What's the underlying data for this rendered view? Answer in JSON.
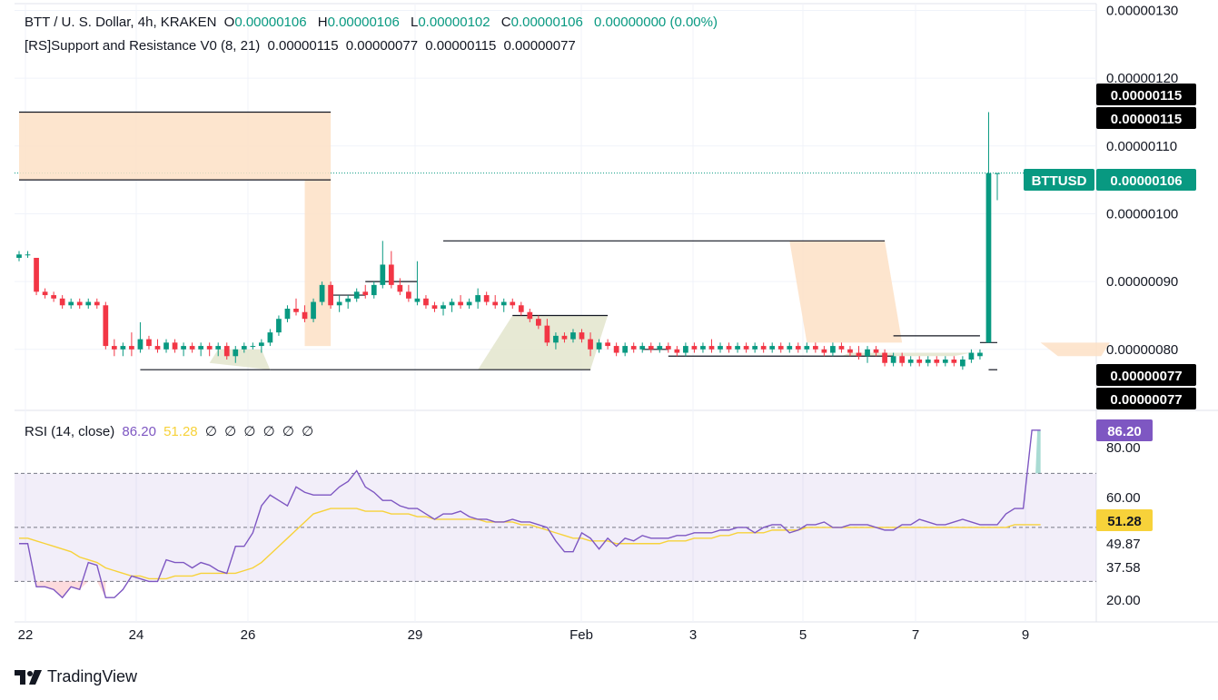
{
  "legend": {
    "symbol": "BTT / U. S. Dollar, 4h, KRAKEN",
    "o_label": "O",
    "o": "0.00000106",
    "h_label": "H",
    "h": "0.00000106",
    "l_label": "L",
    "l": "0.00000102",
    "c_label": "C",
    "c": "0.00000106",
    "change": "0.00000000 (0.00%)",
    "indicator": "[RS]Support and Resistance V0 (8, 21)",
    "ind_values": [
      "0.00000115",
      "0.00000077",
      "0.00000115",
      "0.00000077"
    ]
  },
  "rsi_legend": {
    "title": "RSI (14, close)",
    "rsi": "86.20",
    "ma": "51.28",
    "empty": [
      "∅",
      "∅",
      "∅",
      "∅",
      "∅",
      "∅"
    ]
  },
  "brand": {
    "name": "TradingView"
  },
  "colors": {
    "up": "#089981",
    "down": "#f23645",
    "rsi": "#7e57c2",
    "rsi_ma": "#f7d23a",
    "zone": "#fde0c5",
    "zone_sup": "#e3e5cc"
  },
  "chart_data": {
    "type": "candlestick",
    "symbol": "BTTUSD",
    "x_ticks": [
      "22",
      "24",
      "26",
      "29",
      "Feb",
      "3",
      "5",
      "7",
      "9"
    ],
    "price_axis": {
      "ticks": [
        "0.00000130",
        "0.00000120",
        "0.00000110",
        "0.00000100",
        "0.00000090",
        "0.00000080"
      ],
      "range": [
        7.1e-07,
        1.31e-06
      ]
    },
    "price_labels": [
      {
        "text": "0.00000115",
        "value": 1.15e-06,
        "kind": "resistance"
      },
      {
        "text": "0.00000115",
        "value": 1.15e-06,
        "kind": "resistance"
      },
      {
        "text": "BTTUSD",
        "value": 1.06e-06,
        "kind": "symbol"
      },
      {
        "text": "0.00000106",
        "value": 1.06e-06,
        "kind": "last"
      },
      {
        "text": "0.00000077",
        "value": 7.7e-07,
        "kind": "support"
      },
      {
        "text": "0.00000077",
        "value": 7.7e-07,
        "kind": "support"
      }
    ],
    "last_price": 1.06e-06,
    "candles": [
      [
        9.35e-07,
        9.45e-07,
        9.3e-07,
        9.4e-07
      ],
      [
        9.4e-07,
        9.45e-07,
        9.35e-07,
        9.4e-07
      ],
      [
        9.35e-07,
        9.35e-07,
        8.8e-07,
        8.85e-07
      ],
      [
        8.85e-07,
        8.9e-07,
        8.75e-07,
        8.8e-07
      ],
      [
        8.8e-07,
        8.85e-07,
        8.7e-07,
        8.75e-07
      ],
      [
        8.75e-07,
        8.8e-07,
        8.6e-07,
        8.65e-07
      ],
      [
        8.65e-07,
        8.75e-07,
        8.6e-07,
        8.7e-07
      ],
      [
        8.7e-07,
        8.75e-07,
        8.6e-07,
        8.65e-07
      ],
      [
        8.65e-07,
        8.75e-07,
        8.6e-07,
        8.7e-07
      ],
      [
        8.7e-07,
        8.75e-07,
        8.6e-07,
        8.65e-07
      ],
      [
        8.65e-07,
        8.7e-07,
        8e-07,
        8.05e-07
      ],
      [
        8.05e-07,
        8.15e-07,
        7.9e-07,
        8e-07
      ],
      [
        8e-07,
        8.1e-07,
        7.9e-07,
        8.05e-07
      ],
      [
        8.05e-07,
        8.25e-07,
        7.9e-07,
        8e-07
      ],
      [
        8e-07,
        8.4e-07,
        7.95e-07,
        8.15e-07
      ],
      [
        8.15e-07,
        8.2e-07,
        8e-07,
        8.05e-07
      ],
      [
        8.05e-07,
        8.15e-07,
        7.95e-07,
        8e-07
      ],
      [
        8e-07,
        8.15e-07,
        7.95e-07,
        8.1e-07
      ],
      [
        8.1e-07,
        8.15e-07,
        7.95e-07,
        8e-07
      ],
      [
        8e-07,
        8.1e-07,
        7.9e-07,
        8.05e-07
      ],
      [
        8.05e-07,
        8.1e-07,
        7.95e-07,
        8e-07
      ],
      [
        8e-07,
        8.1e-07,
        7.9e-07,
        8.05e-07
      ],
      [
        8.05e-07,
        8.1e-07,
        7.9e-07,
        8e-07
      ],
      [
        8e-07,
        8.1e-07,
        7.9e-07,
        8.05e-07
      ],
      [
        8.05e-07,
        8.1e-07,
        7.85e-07,
        7.9e-07
      ],
      [
        7.9e-07,
        8.05e-07,
        7.8e-07,
        8e-07
      ],
      [
        8e-07,
        8.1e-07,
        7.95e-07,
        8.05e-07
      ],
      [
        8.05e-07,
        8.1e-07,
        8e-07,
        8.05e-07
      ],
      [
        8.05e-07,
        8.15e-07,
        7.95e-07,
        8.1e-07
      ],
      [
        8.1e-07,
        8.3e-07,
        8.05e-07,
        8.25e-07
      ],
      [
        8.25e-07,
        8.5e-07,
        8.2e-07,
        8.45e-07
      ],
      [
        8.45e-07,
        8.65e-07,
        8.4e-07,
        8.6e-07
      ],
      [
        8.6e-07,
        8.75e-07,
        8.5e-07,
        8.55e-07
      ],
      [
        8.55e-07,
        8.65e-07,
        8.4e-07,
        8.45e-07
      ],
      [
        8.45e-07,
        8.75e-07,
        8.4e-07,
        8.7e-07
      ],
      [
        8.7e-07,
        9e-07,
        8.65e-07,
        8.95e-07
      ],
      [
        8.95e-07,
        9e-07,
        8.6e-07,
        8.65e-07
      ],
      [
        8.65e-07,
        8.8e-07,
        8.55e-07,
        8.7e-07
      ],
      [
        8.7e-07,
        8.8e-07,
        8.6e-07,
        8.75e-07
      ],
      [
        8.75e-07,
        8.9e-07,
        8.7e-07,
        8.85e-07
      ],
      [
        8.85e-07,
        8.95e-07,
        8.75e-07,
        8.8e-07
      ],
      [
        8.8e-07,
        9e-07,
        8.75e-07,
        8.95e-07
      ],
      [
        8.95e-07,
        9.6e-07,
        8.9e-07,
        9.25e-07
      ],
      [
        9.25e-07,
        9.45e-07,
        8.9e-07,
        8.95e-07
      ],
      [
        8.95e-07,
        9.05e-07,
        8.8e-07,
        8.85e-07
      ],
      [
        8.85e-07,
        8.95e-07,
        8.7e-07,
        8.75e-07
      ],
      [
        8.7e-07,
        9.3e-07,
        8.65e-07,
        8.75e-07
      ],
      [
        8.75e-07,
        8.8e-07,
        8.6e-07,
        8.65e-07
      ],
      [
        8.65e-07,
        8.7e-07,
        8.55e-07,
        8.6e-07
      ],
      [
        8.6e-07,
        8.7e-07,
        8.5e-07,
        8.65e-07
      ],
      [
        8.65e-07,
        8.75e-07,
        8.55e-07,
        8.7e-07
      ],
      [
        8.7e-07,
        8.8e-07,
        8.6e-07,
        8.65e-07
      ],
      [
        8.65e-07,
        8.75e-07,
        8.6e-07,
        8.7e-07
      ],
      [
        8.7e-07,
        8.9e-07,
        8.6e-07,
        8.8e-07
      ],
      [
        8.8e-07,
        8.85e-07,
        8.65e-07,
        8.7e-07
      ],
      [
        8.7e-07,
        8.8e-07,
        8.6e-07,
        8.65e-07
      ],
      [
        8.65e-07,
        8.75e-07,
        8.55e-07,
        8.7e-07
      ],
      [
        8.7e-07,
        8.75e-07,
        8.6e-07,
        8.65e-07
      ],
      [
        8.65e-07,
        8.7e-07,
        8.5e-07,
        8.55e-07
      ],
      [
        8.55e-07,
        8.6e-07,
        8.4e-07,
        8.45e-07
      ],
      [
        8.45e-07,
        8.5e-07,
        8.3e-07,
        8.35e-07
      ],
      [
        8.35e-07,
        8.45e-07,
        8.05e-07,
        8.1e-07
      ],
      [
        8.1e-07,
        8.25e-07,
        8e-07,
        8.2e-07
      ],
      [
        8.2e-07,
        8.25e-07,
        8.1e-07,
        8.15e-07
      ],
      [
        8.15e-07,
        8.3e-07,
        8.1e-07,
        8.25e-07
      ],
      [
        8.25e-07,
        8.3e-07,
        8.1e-07,
        8.15e-07
      ],
      [
        8.15e-07,
        8.25e-07,
        7.9e-07,
        8e-07
      ],
      [
        8e-07,
        8.15e-07,
        7.95e-07,
        8.1e-07
      ],
      [
        8.1e-07,
        8.15e-07,
        8e-07,
        8.05e-07
      ],
      [
        8.05e-07,
        8.1e-07,
        7.9e-07,
        7.95e-07
      ],
      [
        7.95e-07,
        8.1e-07,
        7.9e-07,
        8.05e-07
      ],
      [
        8.05e-07,
        8.1e-07,
        7.95e-07,
        8e-07
      ],
      [
        8e-07,
        8.1e-07,
        7.95e-07,
        8.05e-07
      ],
      [
        8.05e-07,
        8.1e-07,
        7.95e-07,
        8e-07
      ],
      [
        8e-07,
        8.1e-07,
        7.95e-07,
        8.05e-07
      ],
      [
        8.05e-07,
        8.1e-07,
        7.95e-07,
        8e-07
      ],
      [
        8e-07,
        8.05e-07,
        7.9e-07,
        7.95e-07
      ],
      [
        7.95e-07,
        8.1e-07,
        7.9e-07,
        8.05e-07
      ],
      [
        8.05e-07,
        8.1e-07,
        7.95e-07,
        8e-07
      ],
      [
        8e-07,
        8.1e-07,
        7.95e-07,
        8.05e-07
      ],
      [
        8.05e-07,
        8.15e-07,
        7.95e-07,
        8e-07
      ],
      [
        8e-07,
        8.1e-07,
        7.95e-07,
        8.05e-07
      ],
      [
        8.05e-07,
        8.1e-07,
        7.95e-07,
        8e-07
      ],
      [
        8e-07,
        8.1e-07,
        7.95e-07,
        8.05e-07
      ],
      [
        8.05e-07,
        8.1e-07,
        7.95e-07,
        8e-07
      ],
      [
        8e-07,
        8.1e-07,
        7.95e-07,
        8.05e-07
      ],
      [
        8.05e-07,
        8.1e-07,
        7.95e-07,
        8e-07
      ],
      [
        8e-07,
        8.1e-07,
        7.95e-07,
        8.05e-07
      ],
      [
        8.05e-07,
        8.1e-07,
        7.95e-07,
        8e-07
      ],
      [
        8e-07,
        8.1e-07,
        7.95e-07,
        8.05e-07
      ],
      [
        8.05e-07,
        8.1e-07,
        7.95e-07,
        8e-07
      ],
      [
        8e-07,
        8.1e-07,
        7.95e-07,
        8.05e-07
      ],
      [
        8.05e-07,
        8.1e-07,
        7.95e-07,
        8e-07
      ],
      [
        8e-07,
        8.05e-07,
        7.9e-07,
        7.95e-07
      ],
      [
        7.95e-07,
        8.1e-07,
        7.9e-07,
        8.05e-07
      ],
      [
        8.05e-07,
        8.1e-07,
        7.95e-07,
        8e-07
      ],
      [
        8e-07,
        8.05e-07,
        7.9e-07,
        7.95e-07
      ],
      [
        7.95e-07,
        8.05e-07,
        7.85e-07,
        7.9e-07
      ],
      [
        7.9e-07,
        8.05e-07,
        7.8e-07,
        8e-07
      ],
      [
        8e-07,
        8.05e-07,
        7.9e-07,
        7.95e-07
      ],
      [
        7.95e-07,
        8e-07,
        7.75e-07,
        7.8e-07
      ],
      [
        7.8e-07,
        7.95e-07,
        7.75e-07,
        7.9e-07
      ],
      [
        7.9e-07,
        7.95e-07,
        7.75e-07,
        7.8e-07
      ],
      [
        7.8e-07,
        7.9e-07,
        7.75e-07,
        7.85e-07
      ],
      [
        7.85e-07,
        7.9e-07,
        7.75e-07,
        7.8e-07
      ],
      [
        7.8e-07,
        7.9e-07,
        7.75e-07,
        7.85e-07
      ],
      [
        7.85e-07,
        7.9e-07,
        7.75e-07,
        7.8e-07
      ],
      [
        7.8e-07,
        7.9e-07,
        7.75e-07,
        7.85e-07
      ],
      [
        7.85e-07,
        7.9e-07,
        7.75e-07,
        7.8e-07
      ],
      [
        7.75e-07,
        7.9e-07,
        7.7e-07,
        7.85e-07
      ],
      [
        7.85e-07,
        8e-07,
        7.8e-07,
        7.95e-07
      ],
      [
        7.9e-07,
        8e-07,
        7.85e-07,
        7.95e-07
      ],
      [
        8.1e-07,
        1.15e-06,
        8.1e-07,
        1.06e-06
      ],
      [
        1.06e-06,
        1.06e-06,
        1.02e-06,
        1.06e-06
      ]
    ],
    "sr_levels": [
      {
        "y": 1.15e-06,
        "x0": 0,
        "x1": 36,
        "kind": "resistance"
      },
      {
        "y": 1.05e-06,
        "x0": 0,
        "x1": 36,
        "kind": "support"
      },
      {
        "y": 7.7e-07,
        "x0": 14,
        "x1": 29,
        "kind": "support"
      },
      {
        "y": 7.7e-07,
        "x0": 29,
        "x1": 66,
        "kind": "support"
      },
      {
        "y": 8.8e-07,
        "x0": 36,
        "x1": 40,
        "kind": "resistance"
      },
      {
        "y": 9e-07,
        "x0": 40,
        "x1": 46,
        "kind": "resistance"
      },
      {
        "y": 9.6e-07,
        "x0": 49,
        "x1": 100,
        "kind": "resistance"
      },
      {
        "y": 8.5e-07,
        "x0": 57,
        "x1": 68,
        "kind": "support"
      },
      {
        "y": 8e-07,
        "x0": 72,
        "x1": 75,
        "kind": "support"
      },
      {
        "y": 7.9e-07,
        "x0": 75,
        "x1": 101,
        "kind": "support"
      },
      {
        "y": 8.2e-07,
        "x0": 101,
        "x1": 111,
        "kind": "resistance"
      },
      {
        "y": 8.1e-07,
        "x0": 111,
        "x1": 126,
        "kind": "resistance"
      },
      {
        "y": 7.7e-07,
        "x0": 112,
        "x1": 129,
        "kind": "support"
      }
    ],
    "rsi_axis": {
      "ticks": [
        "80.00",
        "60.00",
        "49.87",
        "37.58",
        "20.00"
      ],
      "levels_dashed": [
        70,
        50,
        30
      ],
      "range": [
        15,
        92
      ]
    },
    "rsi_labels": [
      {
        "text": "86.20",
        "value": 86.2
      },
      {
        "text": "51.28",
        "value": 51.28
      }
    ],
    "rsi": [
      44,
      44,
      28,
      28,
      27,
      24,
      28,
      27,
      37,
      36,
      24,
      24,
      27,
      32,
      31,
      30,
      30,
      38,
      37,
      37,
      35,
      37,
      36,
      34,
      33,
      43,
      43,
      48,
      58,
      62,
      60,
      58,
      65,
      63,
      62,
      62,
      62,
      65,
      67,
      71,
      65,
      63,
      60,
      60,
      58,
      57,
      57,
      55,
      53,
      55,
      55,
      56,
      54,
      53,
      53,
      52,
      52,
      53,
      52,
      52,
      51,
      50,
      45,
      41,
      41,
      48,
      46,
      42,
      46,
      43,
      46,
      45,
      47,
      46,
      46,
      46,
      47,
      47,
      48,
      48,
      48,
      49,
      49,
      50,
      50,
      48,
      50,
      51,
      51,
      48,
      49,
      51,
      51,
      52,
      50,
      50,
      51,
      51,
      51,
      50,
      49,
      49,
      51,
      51,
      53,
      52,
      51,
      51,
      52,
      53,
      52,
      51,
      51,
      51,
      55,
      57,
      57,
      86,
      86
    ],
    "rsi_ma": [
      46,
      46,
      45,
      44,
      43,
      42,
      41,
      39,
      38,
      37,
      35,
      34,
      33,
      32,
      32,
      31,
      31,
      31,
      32,
      32,
      32,
      33,
      33,
      33,
      33,
      33,
      34,
      35,
      37,
      40,
      43,
      46,
      49,
      52,
      55,
      56,
      57,
      57,
      57,
      57,
      56,
      56,
      56,
      55,
      55,
      55,
      54,
      54,
      53,
      53,
      53,
      53,
      53,
      53,
      52,
      52,
      52,
      52,
      51,
      51,
      50,
      49,
      48,
      47,
      46,
      46,
      45,
      45,
      45,
      44,
      44,
      44,
      44,
      44,
      44,
      45,
      45,
      45,
      46,
      46,
      46,
      47,
      47,
      48,
      48,
      48,
      48,
      49,
      49,
      49,
      49,
      50,
      50,
      50,
      50,
      50,
      50,
      50,
      50,
      50,
      50,
      50,
      50,
      50,
      50,
      50,
      50,
      50,
      50,
      50,
      50,
      50,
      50,
      50,
      50,
      51,
      51,
      51,
      51
    ]
  }
}
